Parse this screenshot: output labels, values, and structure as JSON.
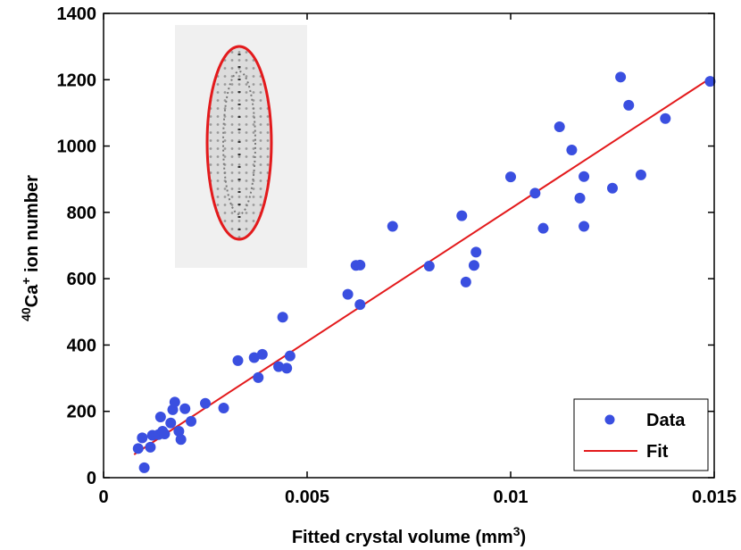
{
  "chart_data": {
    "type": "scatter",
    "title": "",
    "xlabel": "Fitted crystal volume (mm",
    "xlabel_sup": "3",
    "xlabel_end": ")",
    "ylabel_sup": "40",
    "ylabel_main": "Ca",
    "ylabel_sup2": "+",
    "ylabel_end": " ion number",
    "xlim": [
      0,
      0.015
    ],
    "ylim": [
      0,
      1400
    ],
    "x_ticks": [
      0,
      0.005,
      0.01,
      0.015
    ],
    "x_tick_labels": [
      "0",
      "0.005",
      "0.01",
      "0.015"
    ],
    "y_ticks": [
      0,
      200,
      400,
      600,
      800,
      1000,
      1200,
      1400
    ],
    "y_tick_labels": [
      "0",
      "200",
      "400",
      "600",
      "800",
      "1000",
      "1200",
      "1400"
    ],
    "legend": {
      "position": "bottom-right",
      "entries": [
        "Data",
        "Fit"
      ]
    },
    "inset": "ion crystal image with fitted ellipse",
    "colors": {
      "data": "#3a4fe0",
      "fit": "#e31a1c",
      "ellipse": "#e31a1c"
    },
    "series": [
      {
        "name": "Data",
        "kind": "scatter",
        "points": [
          [
            0.00085,
            88
          ],
          [
            0.00095,
            120
          ],
          [
            0.001,
            30
          ],
          [
            0.00115,
            92
          ],
          [
            0.0012,
            128
          ],
          [
            0.00135,
            130
          ],
          [
            0.0014,
            183
          ],
          [
            0.00145,
            140
          ],
          [
            0.0015,
            132
          ],
          [
            0.00165,
            165
          ],
          [
            0.0017,
            205
          ],
          [
            0.00175,
            228
          ],
          [
            0.00185,
            140
          ],
          [
            0.0019,
            115
          ],
          [
            0.002,
            208
          ],
          [
            0.00215,
            170
          ],
          [
            0.0025,
            224
          ],
          [
            0.00295,
            210
          ],
          [
            0.0033,
            353
          ],
          [
            0.0037,
            362
          ],
          [
            0.0038,
            302
          ],
          [
            0.0039,
            372
          ],
          [
            0.0043,
            335
          ],
          [
            0.0044,
            484
          ],
          [
            0.0045,
            330
          ],
          [
            0.00458,
            367
          ],
          [
            0.006,
            553
          ],
          [
            0.0062,
            640
          ],
          [
            0.0063,
            641
          ],
          [
            0.0063,
            522
          ],
          [
            0.0071,
            758
          ],
          [
            0.008,
            638
          ],
          [
            0.0088,
            790
          ],
          [
            0.0089,
            590
          ],
          [
            0.0091,
            640
          ],
          [
            0.00915,
            680
          ],
          [
            0.01,
            907
          ],
          [
            0.0106,
            858
          ],
          [
            0.0108,
            752
          ],
          [
            0.0112,
            1058
          ],
          [
            0.0115,
            988
          ],
          [
            0.0117,
            843
          ],
          [
            0.0118,
            908
          ],
          [
            0.0118,
            758
          ],
          [
            0.0125,
            873
          ],
          [
            0.0127,
            1208
          ],
          [
            0.0129,
            1123
          ],
          [
            0.0132,
            913
          ],
          [
            0.0138,
            1083
          ],
          [
            0.0149,
            1195
          ]
        ]
      },
      {
        "name": "Fit",
        "kind": "line",
        "points": [
          [
            0.00075,
            70
          ],
          [
            0.01495,
            1208
          ]
        ]
      }
    ]
  }
}
